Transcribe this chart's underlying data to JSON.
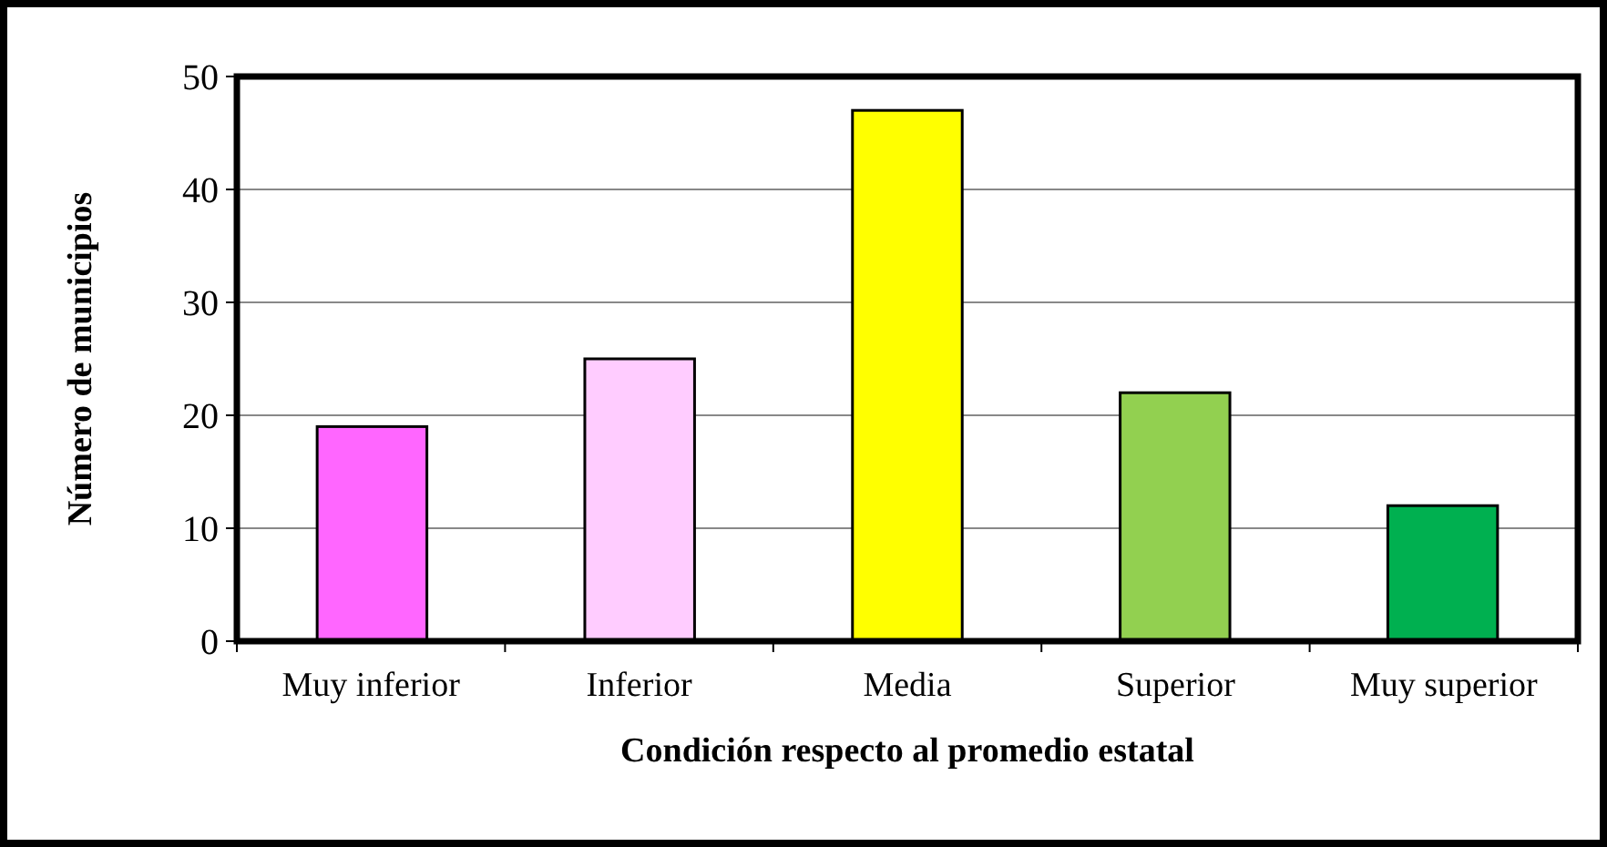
{
  "chart_data": {
    "type": "bar",
    "xlabel": "Condición respecto al promedio estatal",
    "ylabel": "Número de municipios",
    "categories": [
      "Muy inferior",
      "Inferior",
      "Media",
      "Superior",
      "Muy superior"
    ],
    "values": [
      19,
      25,
      47,
      22,
      12
    ],
    "colors": [
      "#ff66ff",
      "#ffccff",
      "#ffff00",
      "#92d050",
      "#00b050"
    ],
    "ylim": [
      0,
      50
    ],
    "yticks": [
      0,
      10,
      20,
      30,
      40,
      50
    ],
    "grid": "y"
  }
}
